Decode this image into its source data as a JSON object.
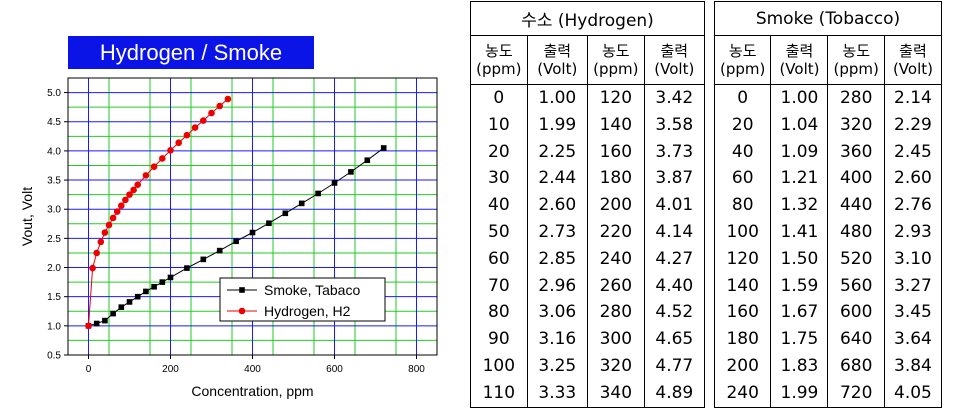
{
  "chart_data": {
    "type": "line",
    "title": "Hydrogen / Smoke",
    "xlabel": "Concentration, ppm",
    "ylabel": "Vout, Volt",
    "xlim": [
      -50,
      850
    ],
    "ylim": [
      0.5,
      5.25
    ],
    "xticks": [
      0,
      200,
      400,
      600,
      800
    ],
    "yticks": [
      0.5,
      1.0,
      1.5,
      2.0,
      2.5,
      3.0,
      3.5,
      4.0,
      4.5,
      5.0
    ],
    "x_tick_labels": [
      "0",
      "200",
      "400",
      "600",
      "800"
    ],
    "y_tick_labels": [
      "0.5",
      "1.0",
      "1.5",
      "2.0",
      "2.5",
      "3.0",
      "3.5",
      "4.0",
      "4.5",
      "5.0"
    ],
    "grid": true,
    "legend_position": "bottom-right",
    "series": [
      {
        "name": "Smoke, Tabaco",
        "color": "#000000",
        "marker": "square",
        "x": [
          0,
          20,
          40,
          60,
          80,
          100,
          120,
          140,
          160,
          180,
          200,
          240,
          280,
          320,
          360,
          400,
          440,
          480,
          520,
          560,
          600,
          640,
          680,
          720
        ],
        "y": [
          1.0,
          1.04,
          1.09,
          1.21,
          1.32,
          1.41,
          1.5,
          1.59,
          1.67,
          1.75,
          1.83,
          1.99,
          2.14,
          2.29,
          2.45,
          2.6,
          2.76,
          2.93,
          3.1,
          3.27,
          3.45,
          3.64,
          3.84,
          4.05
        ]
      },
      {
        "name": "Hydrogen, H2",
        "color": "#ee0000",
        "marker": "circle",
        "x": [
          0,
          10,
          20,
          30,
          40,
          50,
          60,
          70,
          80,
          90,
          100,
          110,
          120,
          140,
          160,
          180,
          200,
          220,
          240,
          260,
          280,
          300,
          320,
          340
        ],
        "y": [
          1.0,
          1.99,
          2.25,
          2.44,
          2.6,
          2.73,
          2.85,
          2.96,
          3.06,
          3.16,
          3.25,
          3.33,
          3.42,
          3.58,
          3.73,
          3.87,
          4.01,
          4.14,
          4.27,
          4.4,
          4.52,
          4.65,
          4.77,
          4.89
        ]
      }
    ]
  },
  "tables": {
    "hydrogen": {
      "title": "수소 (Hydrogen)",
      "columns": [
        {
          "line1": "농도",
          "line2": "(ppm)"
        },
        {
          "line1": "출력",
          "line2": "(Volt)"
        },
        {
          "line1": "농도",
          "line2": "(ppm)"
        },
        {
          "line1": "출력",
          "line2": "(Volt)"
        }
      ],
      "col1": [
        "0",
        "10",
        "20",
        "30",
        "40",
        "50",
        "60",
        "70",
        "80",
        "90",
        "100",
        "110"
      ],
      "col2": [
        "1.00",
        "1.99",
        "2.25",
        "2.44",
        "2.60",
        "2.73",
        "2.85",
        "2.96",
        "3.06",
        "3.16",
        "3.25",
        "3.33"
      ],
      "col3": [
        "120",
        "140",
        "160",
        "180",
        "200",
        "220",
        "240",
        "260",
        "280",
        "300",
        "320",
        "340"
      ],
      "col4": [
        "3.42",
        "3.58",
        "3.73",
        "3.87",
        "4.01",
        "4.14",
        "4.27",
        "4.40",
        "4.52",
        "4.65",
        "4.77",
        "4.89"
      ]
    },
    "smoke": {
      "title": "Smoke (Tobacco)",
      "columns": [
        {
          "line1": "농도",
          "line2": "(ppm)"
        },
        {
          "line1": "출력",
          "line2": "(Volt)"
        },
        {
          "line1": "농도",
          "line2": "(ppm)"
        },
        {
          "line1": "출력",
          "line2": "(Volt)"
        }
      ],
      "col1": [
        "0",
        "20",
        "40",
        "60",
        "80",
        "100",
        "120",
        "140",
        "160",
        "180",
        "200",
        "240"
      ],
      "col2": [
        "1.00",
        "1.04",
        "1.09",
        "1.21",
        "1.32",
        "1.41",
        "1.50",
        "1.59",
        "1.67",
        "1.75",
        "1.83",
        "1.99"
      ],
      "col3": [
        "280",
        "320",
        "360",
        "400",
        "440",
        "480",
        "520",
        "560",
        "600",
        "640",
        "680",
        "720"
      ],
      "col4": [
        "2.14",
        "2.29",
        "2.45",
        "2.60",
        "2.76",
        "2.93",
        "3.10",
        "3.27",
        "3.45",
        "3.64",
        "3.84",
        "4.05"
      ]
    }
  }
}
